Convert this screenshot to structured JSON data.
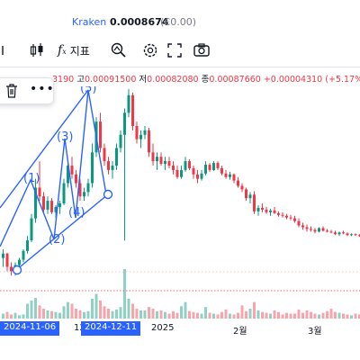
{
  "header": {
    "exchange": "Kraken",
    "price": "0.0008674",
    "change": "(€0.00)"
  },
  "toolbar": {
    "indicators_label": "지표"
  },
  "ohlc": {
    "open_fragment": "3190",
    "high_label": "고",
    "high": "0.00091500",
    "low_label": "저",
    "low": "0.00082080",
    "close_label": "종",
    "close": "0.00087660",
    "delta": "+0.00004310",
    "delta_pct": "(+5.17%)"
  },
  "pattern_labels": [
    "(1)",
    "(2)",
    "(3)",
    "(4)",
    "(5)"
  ],
  "xaxis": {
    "ticks": [
      "2025",
      "2월",
      "3월"
    ],
    "highlight_left": "2024-11-06",
    "highlight_right": "2024-12-11",
    "partial_12": "12"
  },
  "colors": {
    "up": "#089981",
    "down": "#f23645",
    "pattern": "#2962ff",
    "accent": "#2962ff"
  },
  "chart_data": {
    "type": "candlestick",
    "candles": [
      [
        0.78,
        0.79,
        0.77,
        0.785
      ],
      [
        0.785,
        0.786,
        0.765,
        0.77
      ],
      [
        0.77,
        0.775,
        0.76,
        0.765
      ],
      [
        0.765,
        0.775,
        0.76,
        0.772
      ],
      [
        0.772,
        0.78,
        0.77,
        0.778
      ],
      [
        0.778,
        0.79,
        0.775,
        0.788
      ],
      [
        0.788,
        0.805,
        0.785,
        0.8
      ],
      [
        0.8,
        0.83,
        0.798,
        0.825
      ],
      [
        0.825,
        0.87,
        0.82,
        0.86
      ],
      [
        0.86,
        0.89,
        0.845,
        0.85
      ],
      [
        0.85,
        0.855,
        0.83,
        0.835
      ],
      [
        0.835,
        0.85,
        0.83,
        0.845
      ],
      [
        0.845,
        0.848,
        0.83,
        0.832
      ],
      [
        0.832,
        0.84,
        0.825,
        0.838
      ],
      [
        0.838,
        0.845,
        0.83,
        0.842
      ],
      [
        0.842,
        0.87,
        0.84,
        0.865
      ],
      [
        0.865,
        0.89,
        0.86,
        0.885
      ],
      [
        0.885,
        0.895,
        0.87,
        0.875
      ],
      [
        0.875,
        0.88,
        0.86,
        0.865
      ],
      [
        0.865,
        0.87,
        0.845,
        0.85
      ],
      [
        0.85,
        0.86,
        0.845,
        0.855
      ],
      [
        0.855,
        0.87,
        0.85,
        0.865
      ],
      [
        0.865,
        0.91,
        0.86,
        0.9
      ],
      [
        0.9,
        0.94,
        0.895,
        0.935
      ],
      [
        0.935,
        0.945,
        0.9,
        0.905
      ],
      [
        0.905,
        0.91,
        0.885,
        0.89
      ],
      [
        0.89,
        0.895,
        0.875,
        0.88
      ],
      [
        0.88,
        0.89,
        0.87,
        0.885
      ],
      [
        0.885,
        0.91,
        0.88,
        0.905
      ],
      [
        0.905,
        0.925,
        0.9,
        0.92
      ],
      [
        0.92,
        0.95,
        0.8,
        0.945
      ],
      [
        0.945,
        0.972,
        0.94,
        0.965
      ],
      [
        0.965,
        0.968,
        0.925,
        0.93
      ],
      [
        0.93,
        0.935,
        0.91,
        0.915
      ],
      [
        0.915,
        0.925,
        0.905,
        0.92
      ],
      [
        0.92,
        0.93,
        0.915,
        0.925
      ],
      [
        0.925,
        0.928,
        0.895,
        0.9
      ],
      [
        0.9,
        0.91,
        0.885,
        0.89
      ],
      [
        0.89,
        0.9,
        0.88,
        0.895
      ],
      [
        0.895,
        0.9,
        0.885,
        0.887
      ],
      [
        0.887,
        0.895,
        0.88,
        0.89
      ],
      [
        0.89,
        0.895,
        0.882,
        0.885
      ],
      [
        0.885,
        0.89,
        0.875,
        0.88
      ],
      [
        0.88,
        0.885,
        0.87,
        0.872
      ],
      [
        0.872,
        0.885,
        0.87,
        0.88
      ],
      [
        0.88,
        0.895,
        0.878,
        0.89
      ],
      [
        0.89,
        0.892,
        0.88,
        0.882
      ],
      [
        0.882,
        0.885,
        0.87,
        0.875
      ],
      [
        0.875,
        0.88,
        0.865,
        0.87
      ],
      [
        0.87,
        0.88,
        0.868,
        0.876
      ],
      [
        0.876,
        0.89,
        0.874,
        0.886
      ],
      [
        0.886,
        0.888,
        0.878,
        0.88
      ],
      [
        0.88,
        0.89,
        0.879,
        0.888
      ],
      [
        0.888,
        0.89,
        0.88,
        0.882
      ],
      [
        0.882,
        0.885,
        0.874,
        0.876
      ],
      [
        0.876,
        0.88,
        0.87,
        0.872
      ],
      [
        0.872,
        0.878,
        0.869,
        0.875
      ],
      [
        0.875,
        0.876,
        0.865,
        0.868
      ],
      [
        0.868,
        0.872,
        0.86,
        0.862
      ],
      [
        0.862,
        0.865,
        0.855,
        0.858
      ],
      [
        0.858,
        0.86,
        0.845,
        0.848
      ],
      [
        0.848,
        0.855,
        0.842,
        0.852
      ],
      [
        0.852,
        0.856,
        0.83,
        0.833
      ],
      [
        0.833,
        0.84,
        0.828,
        0.837
      ],
      [
        0.837,
        0.842,
        0.832,
        0.835
      ],
      [
        0.835,
        0.838,
        0.83,
        0.832
      ],
      [
        0.832,
        0.836,
        0.828,
        0.834
      ],
      [
        0.834,
        0.838,
        0.83,
        0.831
      ],
      [
        0.831,
        0.833,
        0.827,
        0.829
      ],
      [
        0.829,
        0.832,
        0.826,
        0.828
      ],
      [
        0.828,
        0.83,
        0.824,
        0.826
      ],
      [
        0.826,
        0.829,
        0.823,
        0.825
      ],
      [
        0.825,
        0.828,
        0.82,
        0.822
      ],
      [
        0.822,
        0.825,
        0.815,
        0.817
      ],
      [
        0.817,
        0.82,
        0.812,
        0.815
      ],
      [
        0.815,
        0.818,
        0.81,
        0.813
      ],
      [
        0.813,
        0.816,
        0.81,
        0.812
      ],
      [
        0.812,
        0.814,
        0.808,
        0.81
      ],
      [
        0.81,
        0.815,
        0.809,
        0.814
      ],
      [
        0.814,
        0.816,
        0.81,
        0.811
      ],
      [
        0.811,
        0.813,
        0.809,
        0.81
      ],
      [
        0.81,
        0.812,
        0.808,
        0.809
      ],
      [
        0.809,
        0.811,
        0.806,
        0.807
      ],
      [
        0.807,
        0.81,
        0.805,
        0.809
      ],
      [
        0.809,
        0.811,
        0.807,
        0.808
      ],
      [
        0.808,
        0.809,
        0.805,
        0.806
      ],
      [
        0.806,
        0.808,
        0.805,
        0.807
      ],
      [
        0.807,
        0.808,
        0.805,
        0.806
      ],
      [
        0.806,
        0.807,
        0.804,
        0.8055
      ]
    ],
    "volumes": [
      0.6,
      0.8,
      0.5,
      0.7,
      0.4,
      0.5,
      1.8,
      2.2,
      2.5,
      1.6,
      1.2,
      1.0,
      0.9,
      0.8,
      0.7,
      1.5,
      2.0,
      1.8,
      1.2,
      1.0,
      0.8,
      0.9,
      2.4,
      3.0,
      2.2,
      1.5,
      1.2,
      0.9,
      1.1,
      1.4,
      6.0,
      2.4,
      1.8,
      1.2,
      1.0,
      1.0,
      1.4,
      1.2,
      0.9,
      1.0,
      0.8,
      0.6,
      0.9,
      0.7,
      1.5,
      2.0,
      0.9,
      0.8,
      0.7,
      0.6,
      1.4,
      0.7,
      0.6,
      0.5,
      0.8,
      1.1,
      0.6,
      0.5,
      0.7,
      1.6,
      0.9,
      1.2,
      2.0,
      1.0,
      0.8,
      0.7,
      0.6,
      1.0,
      0.8,
      0.5,
      0.7,
      0.6,
      0.6,
      1.1,
      0.7,
      1.0,
      0.8,
      0.6,
      0.5,
      0.7,
      0.9,
      1.2,
      0.8,
      0.7,
      0.6,
      0.5,
      0.4,
      0.6,
      0.5
    ]
  }
}
